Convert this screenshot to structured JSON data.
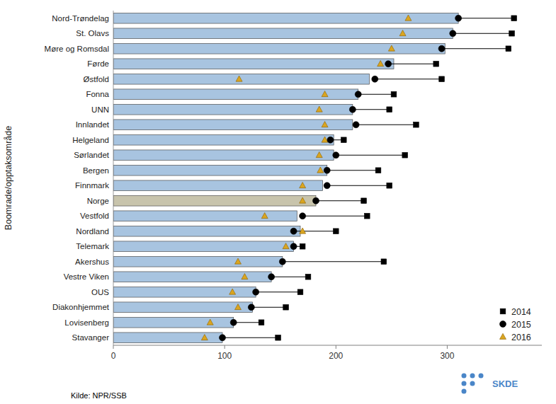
{
  "chart_data": {
    "type": "bar",
    "orientation": "horizontal",
    "y_label": "Boomrade/opptaksområde",
    "annotations": [
      "Kilde: NPR/SSB",
      "SKDE"
    ],
    "categories": [
      "Nord-Trøndelag",
      "St. Olavs",
      "Møre og Romsdal",
      "Førde",
      "Østfold",
      "Fonna",
      "UNN",
      "Innlandet",
      "Helgeland",
      "Sørlandet",
      "Bergen",
      "Finnmark",
      "Norge",
      "Vestfold",
      "Nordland",
      "Telemark",
      "Akershus",
      "Vestre Viken",
      "OUS",
      "Diakonhjemmet",
      "Lovisenberg",
      "Stavanger"
    ],
    "series": [
      {
        "type": "bar",
        "colors": [
          "#A8C4E0",
          "#A8C4E0",
          "#A8C4E0",
          "#A8C4E0",
          "#A8C4E0",
          "#A8C4E0",
          "#A8C4E0",
          "#A8C4E0",
          "#A8C4E0",
          "#A8C4E0",
          "#A8C4E0",
          "#A8C4E0",
          "#C8C4AC",
          "#A8C4E0",
          "#A8C4E0",
          "#A8C4E0",
          "#A8C4E0",
          "#A8C4E0",
          "#A8C4E0",
          "#A8C4E0",
          "#A8C4E0",
          "#A8C4E0"
        ],
        "values": [
          310,
          305,
          298,
          252,
          230,
          220,
          215,
          215,
          198,
          198,
          192,
          188,
          182,
          165,
          168,
          162,
          152,
          142,
          128,
          125,
          108,
          98
        ]
      },
      {
        "name": "2014",
        "type": "scatter",
        "marker": "square",
        "color": "#000000",
        "values": [
          360,
          358,
          355,
          290,
          295,
          252,
          248,
          272,
          207,
          262,
          238,
          248,
          225,
          228,
          200,
          170,
          243,
          175,
          168,
          155,
          133,
          148
        ]
      },
      {
        "name": "2015",
        "type": "scatter",
        "marker": "circle",
        "color": "#000000",
        "values": [
          310,
          305,
          295,
          247,
          235,
          220,
          215,
          218,
          195,
          200,
          192,
          192,
          182,
          170,
          162,
          162,
          152,
          142,
          128,
          124,
          108,
          98
        ]
      },
      {
        "name": "2016",
        "type": "scatter",
        "marker": "triangle",
        "color": "#DAA520",
        "values": [
          265,
          260,
          250,
          240,
          113,
          190,
          185,
          190,
          190,
          185,
          186,
          170,
          170,
          136,
          170,
          155,
          112,
          118,
          107,
          112,
          87,
          82
        ]
      }
    ],
    "xlim": [
      0,
      385
    ],
    "xticks": [
      0,
      100,
      200,
      300
    ],
    "grid": false,
    "legend": "lower right"
  }
}
